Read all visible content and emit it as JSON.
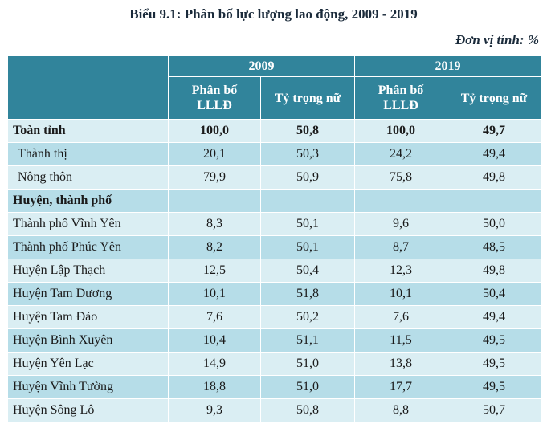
{
  "title": "Biểu 9.1: Phân bố lực lượng lao động, 2009 - 2019",
  "unit": "Đơn vị tính: %",
  "header": {
    "year1": "2009",
    "year2": "2019",
    "col_distribution_line1": "Phân bố",
    "col_distribution_line2": "LLLĐ",
    "col_female": "Tỷ trọng nữ"
  },
  "rows": [
    {
      "label": "Toàn tỉnh",
      "v2009_dist": "100,0",
      "v2009_female": "50,8",
      "v2019_dist": "100,0",
      "v2019_female": "49,7"
    },
    {
      "label": "Thành thị",
      "v2009_dist": "20,1",
      "v2009_female": "50,3",
      "v2019_dist": "24,2",
      "v2019_female": "49,4"
    },
    {
      "label": "Nông thôn",
      "v2009_dist": "79,9",
      "v2009_female": "50,9",
      "v2019_dist": "75,8",
      "v2019_female": "49,8"
    },
    {
      "label": "Huyện, thành phố",
      "v2009_dist": "",
      "v2009_female": "",
      "v2019_dist": "",
      "v2019_female": ""
    },
    {
      "label": "Thành phố Vĩnh Yên",
      "v2009_dist": "8,3",
      "v2009_female": "50,1",
      "v2019_dist": "9,6",
      "v2019_female": "50,0"
    },
    {
      "label": "Thành phố Phúc Yên",
      "v2009_dist": "8,2",
      "v2009_female": "50,1",
      "v2019_dist": "8,7",
      "v2019_female": "48,5"
    },
    {
      "label": "Huyện Lập Thạch",
      "v2009_dist": "12,5",
      "v2009_female": "50,4",
      "v2019_dist": "12,3",
      "v2019_female": "49,8"
    },
    {
      "label": "Huyện Tam Dương",
      "v2009_dist": "10,1",
      "v2009_female": "51,8",
      "v2019_dist": "10,1",
      "v2019_female": "50,4"
    },
    {
      "label": "Huyện Tam Đảo",
      "v2009_dist": "7,6",
      "v2009_female": "50,2",
      "v2019_dist": "7,6",
      "v2019_female": "49,4"
    },
    {
      "label": "Huyện Bình Xuyên",
      "v2009_dist": "10,4",
      "v2009_female": "51,1",
      "v2019_dist": "11,5",
      "v2019_female": "49,5"
    },
    {
      "label": "Huyện Yên Lạc",
      "v2009_dist": "14,9",
      "v2009_female": "51,0",
      "v2019_dist": "13,8",
      "v2019_female": "49,5"
    },
    {
      "label": "Huyện Vĩnh Tường",
      "v2009_dist": "18,8",
      "v2009_female": "51,0",
      "v2019_dist": "17,7",
      "v2019_female": "49,5"
    },
    {
      "label": "Huyện Sông Lô",
      "v2009_dist": "9,3",
      "v2009_female": "50,8",
      "v2019_dist": "8,8",
      "v2019_female": "50,7"
    }
  ]
}
